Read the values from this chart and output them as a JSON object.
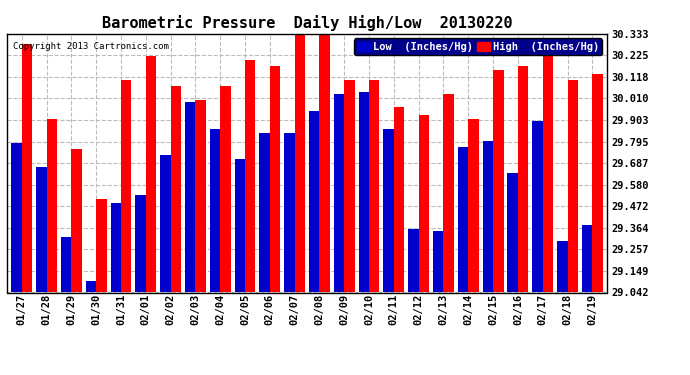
{
  "title": "Barometric Pressure  Daily High/Low  20130220",
  "copyright": "Copyright 2013 Cartronics.com",
  "dates": [
    "01/27",
    "01/28",
    "01/29",
    "01/30",
    "01/31",
    "02/01",
    "02/02",
    "02/03",
    "02/04",
    "02/05",
    "02/06",
    "02/07",
    "02/08",
    "02/09",
    "02/10",
    "02/11",
    "02/12",
    "02/13",
    "02/14",
    "02/15",
    "02/16",
    "02/17",
    "02/18",
    "02/19"
  ],
  "low": [
    29.79,
    29.67,
    29.32,
    29.1,
    29.49,
    29.53,
    29.73,
    29.99,
    29.86,
    29.71,
    29.84,
    29.84,
    29.95,
    30.03,
    30.04,
    29.86,
    29.36,
    29.35,
    29.77,
    29.8,
    29.64,
    29.9,
    29.3,
    29.38
  ],
  "high": [
    30.28,
    29.91,
    29.76,
    29.51,
    30.1,
    30.22,
    30.07,
    30.0,
    30.07,
    30.2,
    30.17,
    30.33,
    30.34,
    30.1,
    30.1,
    29.97,
    29.93,
    30.03,
    29.91,
    30.15,
    30.17,
    30.23,
    30.1,
    30.13
  ],
  "ylim_min": 29.042,
  "ylim_max": 30.333,
  "yticks": [
    29.042,
    29.149,
    29.257,
    29.364,
    29.472,
    29.58,
    29.687,
    29.795,
    29.903,
    30.01,
    30.118,
    30.225,
    30.333
  ],
  "bar_width": 0.42,
  "low_color": "#0000cc",
  "high_color": "#ff0000",
  "background_color": "#ffffff",
  "plot_bg_color": "#ffffff",
  "grid_color": "#bbbbbb",
  "title_fontsize": 11,
  "legend_low_label": "Low  (Inches/Hg)",
  "legend_high_label": "High  (Inches/Hg)"
}
